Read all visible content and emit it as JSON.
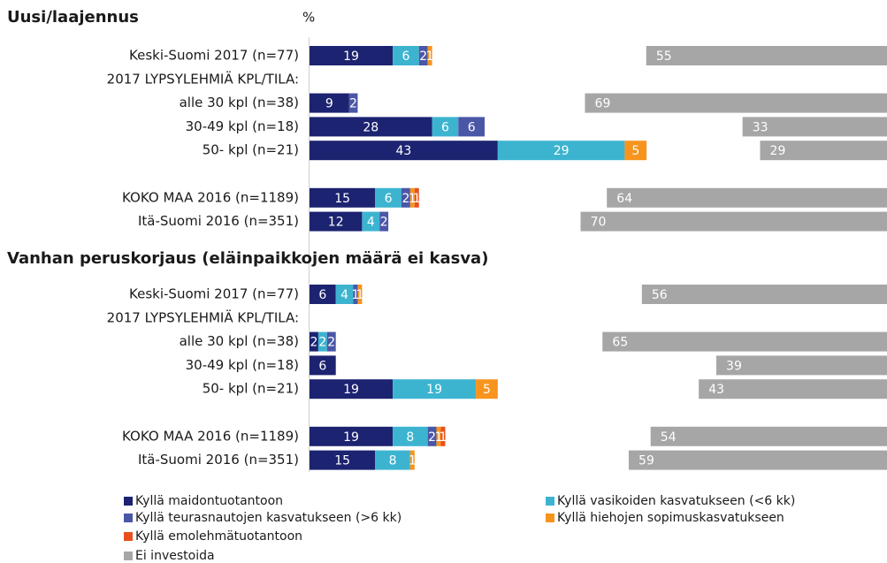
{
  "chart_data": {
    "type": "stacked-hbar",
    "unit": "%",
    "legend": [
      {
        "name": "Kyllä maidontuotantoon",
        "color": "#1c2370"
      },
      {
        "name": "Kyllä vasikoiden kasvatukseen (<6 kk)",
        "color": "#3cb4d0"
      },
      {
        "name": "Kyllä teurasnautojen kasvatukseen (>6 kk)",
        "color": "#4a56a6"
      },
      {
        "name": "Kyllä hiehojen sopimuskasvatukseen",
        "color": "#f7941d"
      },
      {
        "name": "Kyllä emolehmätuotantoon",
        "color": "#e8501e"
      },
      {
        "name": "Ei investoida",
        "color": "#a6a6a6"
      }
    ],
    "panels": [
      {
        "title": "Uusi/laajennus",
        "categories": [
          "Keski-Suomi 2017 (n=77)",
          "2017 LYPSYLEHMIÄ KPL/TILA:",
          "alle 30 kpl (n=38)",
          "30-49 kpl (n=18)",
          "50- kpl (n=21)",
          null,
          "KOKO MAA 2016 (n=1189)",
          "Itä-Suomi 2016 (n=351)"
        ],
        "series": [
          {
            "values": [
              19,
              null,
              9,
              28,
              43,
              null,
              15,
              12
            ]
          },
          {
            "values": [
              6,
              null,
              null,
              6,
              29,
              null,
              6,
              4
            ]
          },
          {
            "values": [
              2,
              null,
              2,
              6,
              null,
              null,
              2,
              2
            ]
          },
          {
            "values": [
              1,
              null,
              null,
              null,
              5,
              null,
              1,
              null
            ]
          },
          {
            "values": [
              null,
              null,
              null,
              null,
              null,
              null,
              1,
              null
            ]
          },
          {
            "values": [
              55,
              null,
              69,
              33,
              29,
              null,
              64,
              70
            ]
          }
        ]
      },
      {
        "title": "Vanhan peruskorjaus (eläinpaikkojen  määrä ei kasva)",
        "categories": [
          "Keski-Suomi 2017 (n=77)",
          "2017 LYPSYLEHMIÄ KPL/TILA:",
          "alle 30 kpl (n=38)",
          "30-49 kpl (n=18)",
          "50- kpl (n=21)",
          null,
          "KOKO MAA 2016 (n=1189)",
          "Itä-Suomi 2016 (n=351)"
        ],
        "series": [
          {
            "values": [
              6,
              null,
              2,
              6,
              19,
              null,
              19,
              15
            ]
          },
          {
            "values": [
              4,
              null,
              2,
              null,
              19,
              null,
              8,
              8
            ]
          },
          {
            "values": [
              1,
              null,
              2,
              null,
              null,
              null,
              2,
              null
            ]
          },
          {
            "values": [
              1,
              null,
              null,
              null,
              5,
              null,
              1,
              1
            ]
          },
          {
            "values": [
              null,
              null,
              null,
              null,
              null,
              null,
              1,
              null
            ]
          },
          {
            "values": [
              56,
              null,
              65,
              39,
              43,
              null,
              54,
              59
            ]
          }
        ]
      }
    ]
  }
}
